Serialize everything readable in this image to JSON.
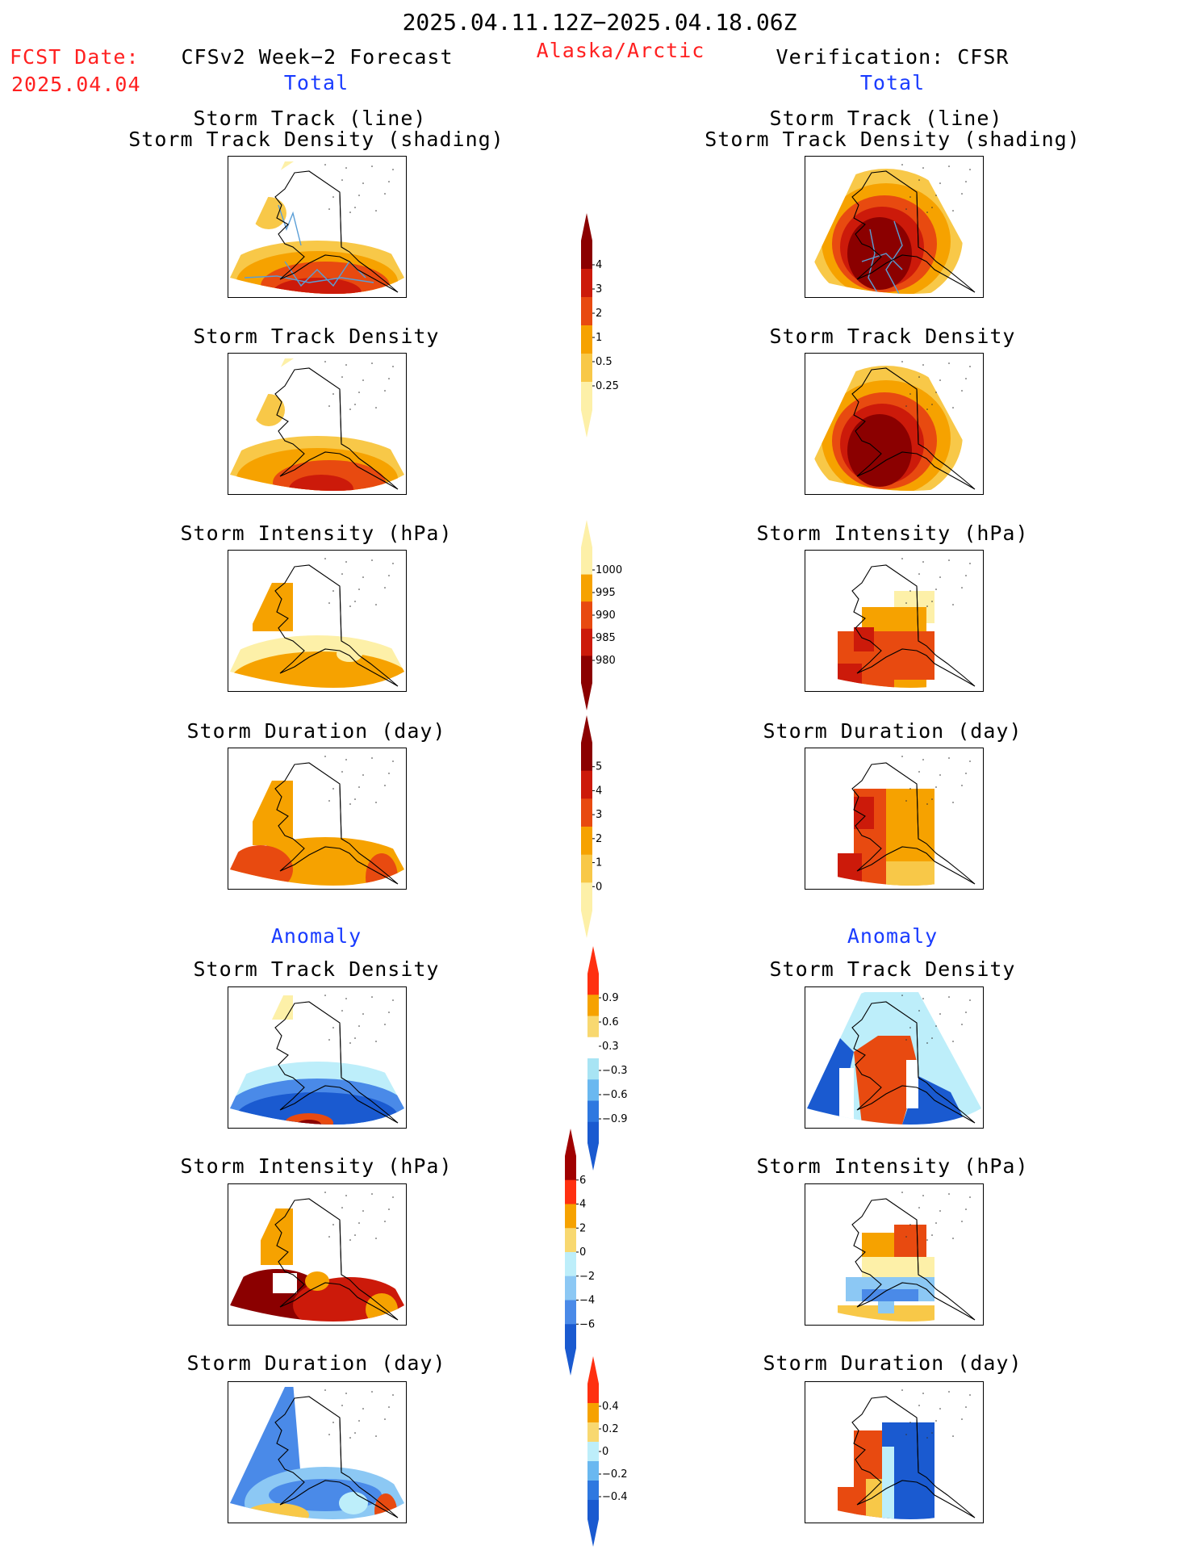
{
  "header": {
    "date_range": "2025.04.11.12Z−2025.04.18.06Z",
    "fcst_label": "FCST Date:",
    "fcst_date": "2025.04.04",
    "forecast_title": "CFSv2 Week−2 Forecast",
    "region": "Alaska/Arctic",
    "verification_title": "Verification: CFSR"
  },
  "columns": {
    "left_total": "Total",
    "right_total": "Total",
    "left_anomaly": "Anomaly",
    "right_anomaly": "Anomaly"
  },
  "panel_titles": {
    "track_line": "Storm Track (line)",
    "track_density_shading": "Storm Track Density (shading)",
    "track_density": "Storm Track Density",
    "intensity": "Storm Intensity (hPa)",
    "duration": "Storm Duration (day)"
  },
  "colorbars": {
    "density": {
      "labels": [
        "4",
        "3",
        "2",
        "1",
        "0.5",
        "0.25"
      ],
      "colors": [
        "#8b0000",
        "#cc1a0a",
        "#e84a10",
        "#f6a200",
        "#f8c848",
        "#fdf0a8"
      ]
    },
    "intensity": {
      "labels": [
        "1000",
        "995",
        "990",
        "985",
        "980"
      ],
      "colors": [
        "#fdf0a8",
        "#f6a200",
        "#e84a10",
        "#cc1a0a",
        "#8b0000"
      ]
    },
    "duration": {
      "labels": [
        "5",
        "4",
        "3",
        "2",
        "1",
        "0"
      ],
      "colors": [
        "#8b0000",
        "#cc1a0a",
        "#e84a10",
        "#f6a200",
        "#f8c848",
        "#fdf0a8"
      ]
    },
    "anom_density": {
      "labels": [
        "0.9",
        "0.6",
        "0.3",
        "−0.3",
        "−0.6",
        "−0.9"
      ],
      "colors": [
        "#ff3010",
        "#f6a200",
        "#f8d870",
        "#ffffff",
        "#a8e4f4",
        "#6ab8f0",
        "#2e78e0",
        "#1a5ad0"
      ]
    },
    "anom_intensity": {
      "labels": [
        "6",
        "4",
        "2",
        "0",
        "−2",
        "−4",
        "−6"
      ],
      "colors": [
        "#a00000",
        "#ff3010",
        "#f6a200",
        "#f8d870",
        "#bdeefa",
        "#8cc8f4",
        "#4a8ae8",
        "#1a5ad0"
      ]
    },
    "anom_duration": {
      "labels": [
        "0.4",
        "0.2",
        "0",
        "−0.2",
        "−0.4"
      ],
      "colors": [
        "#ff3010",
        "#f6a200",
        "#f8d870",
        "#bdeefa",
        "#6ab8f0",
        "#2e78e0",
        "#1a5ad0"
      ]
    }
  }
}
